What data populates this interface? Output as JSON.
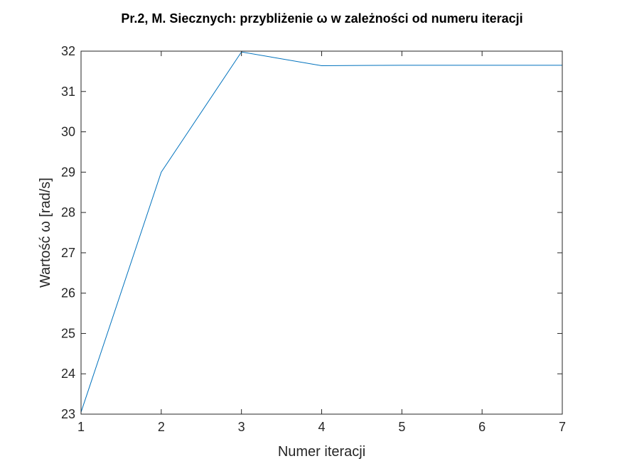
{
  "chart_data": {
    "type": "line",
    "title": "Pr.2, M. Siecznych: przybliżenie ω w zależności od numeru iteracji",
    "xlabel": "Numer iteracji",
    "ylabel": "Wartość ω [rad/s]",
    "xlim": [
      1,
      7
    ],
    "ylim": [
      23,
      32
    ],
    "x_ticks": [
      "1",
      "2",
      "3",
      "4",
      "5",
      "6",
      "7"
    ],
    "y_ticks": [
      "23",
      "24",
      "25",
      "26",
      "27",
      "28",
      "29",
      "30",
      "31",
      "32"
    ],
    "grid": false,
    "series": [
      {
        "color": "#0072BD",
        "x": [
          1,
          2,
          3,
          4,
          5,
          6,
          7
        ],
        "y": [
          23.05,
          29.0,
          31.98,
          31.64,
          31.65,
          31.65,
          31.65
        ]
      }
    ]
  }
}
